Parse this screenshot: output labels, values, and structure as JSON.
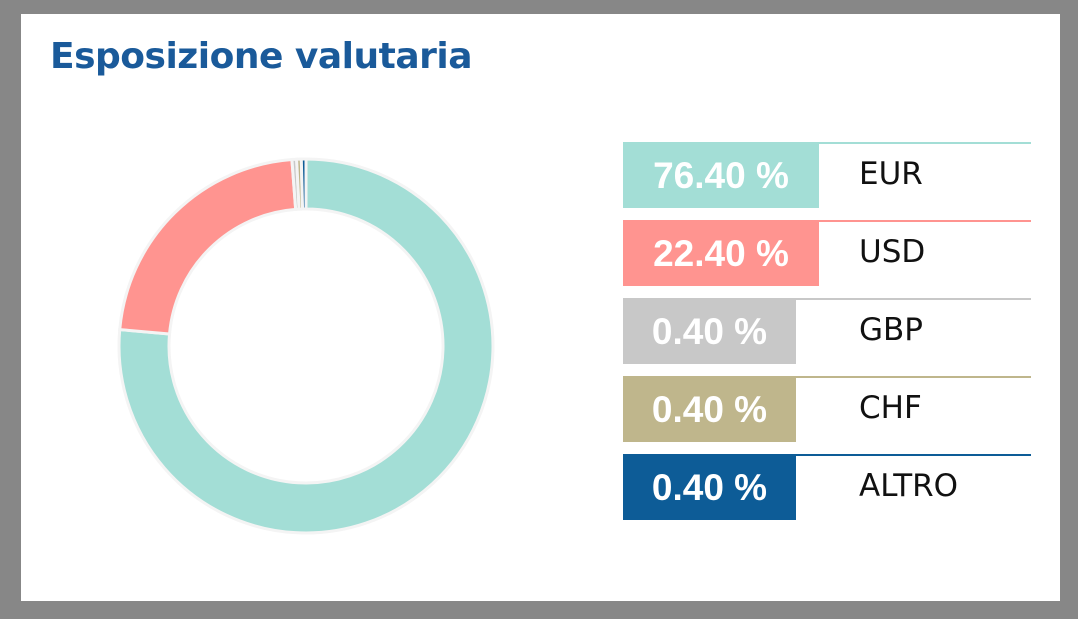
{
  "title": "Esposizione valutaria",
  "chart_data": {
    "type": "pie",
    "categories": [
      "EUR",
      "USD",
      "GBP",
      "CHF",
      "ALTRO"
    ],
    "values": [
      76.4,
      22.4,
      0.4,
      0.4,
      0.4
    ],
    "value_labels": [
      "76.40 %",
      "22.40 %",
      "0.40 %",
      "0.40 %",
      "0.40 %"
    ],
    "colors": [
      "#a3ded6",
      "#ff9490",
      "#c8c8c8",
      "#bfb68c",
      "#0d5c97"
    ],
    "legend_position": "right"
  }
}
